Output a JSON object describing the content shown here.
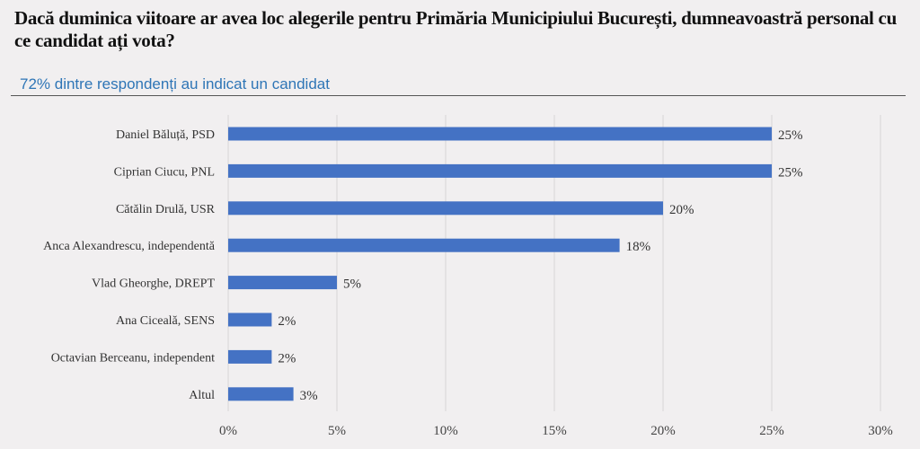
{
  "header": {
    "title": "Dacă duminica viitoare ar avea loc alegerile pentru Primăria Municipiului București, dumneavoastră personal cu ce candidat ați vota?",
    "subtitle": "72% dintre respondenți au indicat un candidat"
  },
  "chart_data": {
    "type": "bar",
    "orientation": "horizontal",
    "categories": [
      "Daniel Băluță, PSD",
      "Ciprian Ciucu, PNL",
      "Cătălin Drulă, USR",
      "Anca Alexandrescu, independentă",
      "Vlad Gheorghe, DREPT",
      "Ana Ciceală, SENS",
      "Octavian Berceanu, independent",
      "Altul"
    ],
    "values": [
      25,
      25,
      20,
      18,
      5,
      2,
      2,
      3
    ],
    "value_labels": [
      "25%",
      "25%",
      "20%",
      "18%",
      "5%",
      "2%",
      "2%",
      "3%"
    ],
    "xlim": [
      0,
      30
    ],
    "x_ticks": [
      0,
      5,
      10,
      15,
      20,
      25,
      30
    ],
    "x_tick_labels": [
      "0%",
      "5%",
      "10%",
      "15%",
      "20%",
      "25%",
      "30%"
    ],
    "grid": "vertical",
    "legend": "none",
    "bar_color": "#4472c4",
    "grid_color": "#d6d6d6"
  }
}
